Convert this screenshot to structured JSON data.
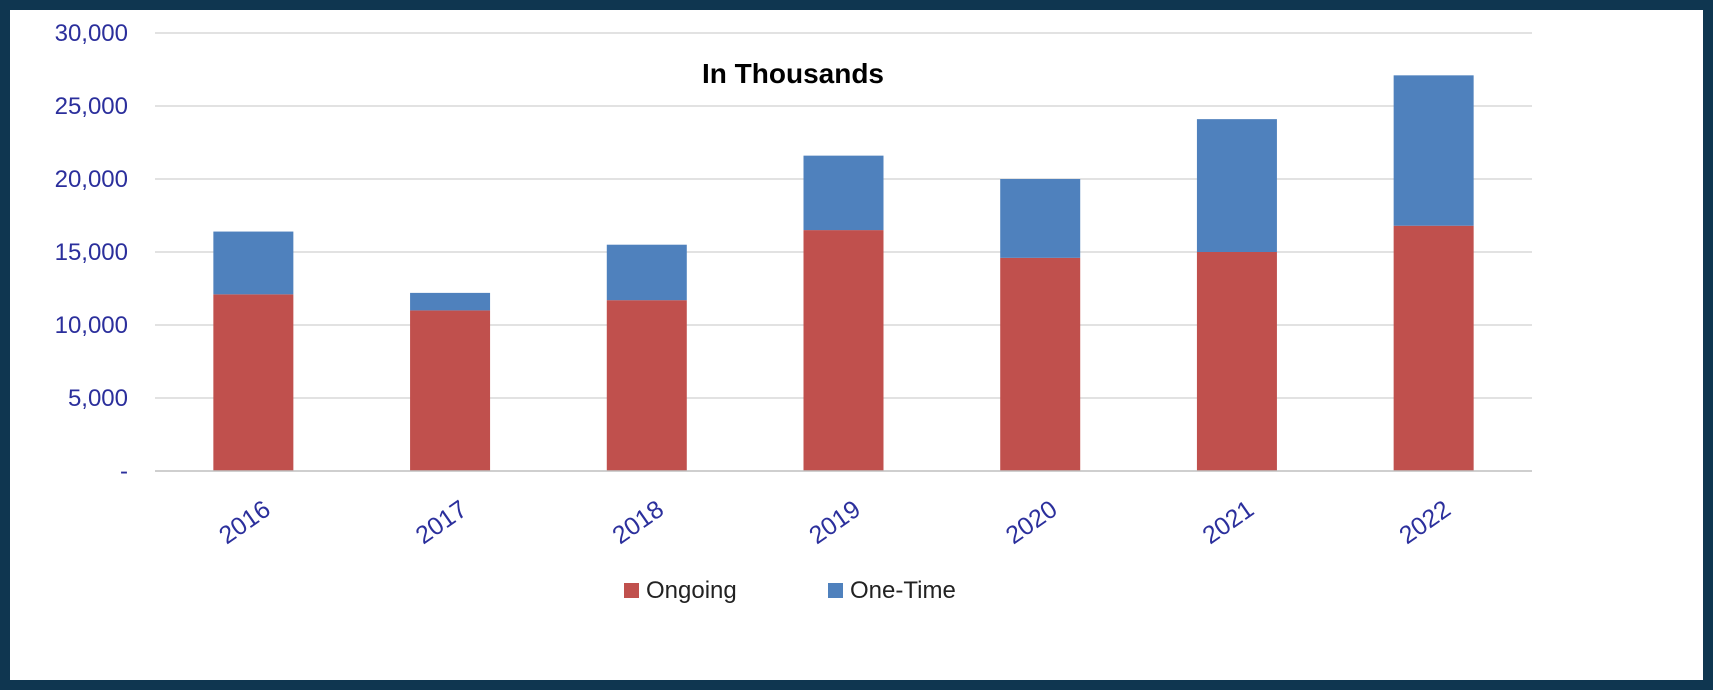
{
  "chart_data": {
    "type": "bar",
    "stacked": true,
    "title": "In Thousands",
    "xlabel": "",
    "ylabel": "",
    "categories": [
      "2016",
      "2017",
      "2018",
      "2019",
      "2020",
      "2021",
      "2022"
    ],
    "series": [
      {
        "name": "Ongoing",
        "color": "#c0504d",
        "values": [
          12100,
          11000,
          11700,
          16500,
          14600,
          15000,
          16800
        ]
      },
      {
        "name": "One-Time",
        "color": "#4f81bd",
        "values": [
          4300,
          1200,
          3800,
          5100,
          5400,
          9100,
          10300
        ]
      }
    ],
    "ylim": [
      0,
      30000
    ],
    "yticks": [
      0,
      5000,
      10000,
      15000,
      20000,
      25000,
      30000
    ],
    "ytick_labels": [
      "-",
      "5,000",
      "10,000",
      "15,000",
      "20,000",
      "25,000",
      "30,000"
    ],
    "grid": true,
    "legend_position": "bottom-center",
    "colors": {
      "frame_background": "#0f3650",
      "plot_background": "#ffffff",
      "tick_label": "#2b2f9c",
      "gridline": "#d9d9d9"
    }
  }
}
